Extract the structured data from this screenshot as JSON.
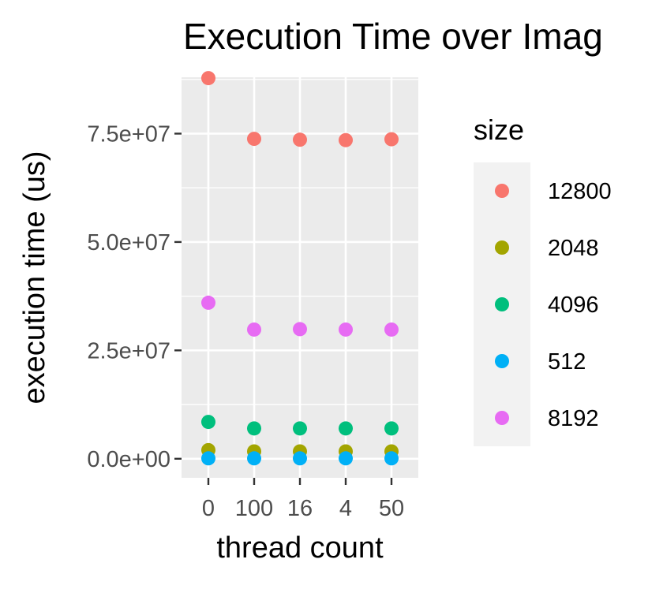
{
  "chart_data": {
    "type": "scatter",
    "title": "Execution Time over Imag",
    "xlabel": "thread count",
    "ylabel": "execution time (us)",
    "categories": [
      "0",
      "100",
      "16",
      "4",
      "50"
    ],
    "y_ticks": [
      0,
      25000000,
      50000000,
      75000000
    ],
    "y_tick_labels": [
      "0.0e+00",
      "2.5e+07",
      "5.0e+07",
      "7.5e+07"
    ],
    "ylim": [
      -4400000,
      88000000
    ],
    "grid": true,
    "legend": {
      "title": "size",
      "position": "right"
    },
    "series": [
      {
        "name": "12800",
        "color": "#F8766D",
        "values": [
          87800000,
          73800000,
          73600000,
          73500000,
          73700000
        ]
      },
      {
        "name": "2048",
        "color": "#A3A500",
        "values": [
          2000000,
          1700000,
          1700000,
          1700000,
          1700000
        ]
      },
      {
        "name": "4096",
        "color": "#00BF7D",
        "values": [
          8500000,
          7000000,
          7000000,
          7000000,
          7000000
        ]
      },
      {
        "name": "512",
        "color": "#00B0F6",
        "values": [
          100000,
          100000,
          100000,
          100000,
          100000
        ]
      },
      {
        "name": "8192",
        "color": "#E76BF3",
        "values": [
          36000000,
          29800000,
          29900000,
          29800000,
          29800000
        ]
      }
    ]
  }
}
